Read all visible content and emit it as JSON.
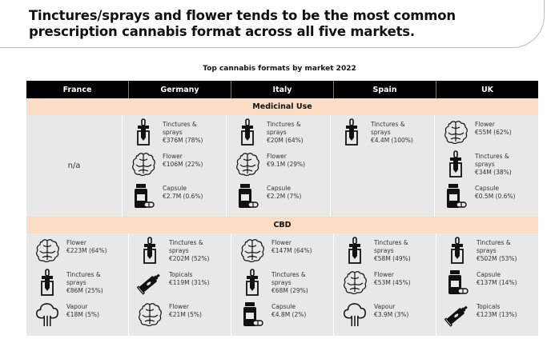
{
  "title": "Tinctures/sprays and flower tends to be the most common prescription cannabis format across all five markets.",
  "subtitle": "Top cannabis formats by market 2022",
  "columns": [
    "France",
    "Germany",
    "Italy",
    "Spain",
    "UK"
  ],
  "sections": [
    {
      "label": "Medicinal Use",
      "cells": [
        {
          "na": "n/a",
          "items": []
        },
        {
          "items": [
            {
              "icon": "dropper-bottle-icon",
              "name": "Tinctures & sprays",
              "value": "€376M (78%)"
            },
            {
              "icon": "flower-bud-icon",
              "name": "Flower",
              "value": "€106M (22%)"
            },
            {
              "icon": "capsule-bottle-icon",
              "name": "Capsule",
              "value": "€2.7M (0.6%)"
            }
          ]
        },
        {
          "items": [
            {
              "icon": "dropper-bottle-icon",
              "name": "Tinctures & sprays",
              "value": "€20M (64%)"
            },
            {
              "icon": "flower-bud-icon",
              "name": "Flower",
              "value": "€9.1M (29%)"
            },
            {
              "icon": "capsule-bottle-icon",
              "name": "Capsule",
              "value": "€2.2M (7%)"
            }
          ]
        },
        {
          "items": [
            {
              "icon": "dropper-bottle-icon",
              "name": "Tinctures & sprays",
              "value": "€4.4M (100%)"
            }
          ]
        },
        {
          "items": [
            {
              "icon": "flower-bud-icon",
              "name": "Flower",
              "value": "€55M (62%)"
            },
            {
              "icon": "dropper-bottle-icon",
              "name": "Tinctures & sprays",
              "value": "€34M (38%)"
            },
            {
              "icon": "capsule-bottle-icon",
              "name": "Capsule",
              "value": "€0.5M (0.6%)"
            }
          ]
        }
      ]
    },
    {
      "label": "CBD",
      "cells": [
        {
          "items": [
            {
              "icon": "flower-bud-icon",
              "name": "Flower",
              "value": "€223M (64%)"
            },
            {
              "icon": "dropper-bottle-icon",
              "name": "Tinctures & sprays",
              "value": "€86M (25%)"
            },
            {
              "icon": "vapour-cloud-icon",
              "name": "Vapour",
              "value": "€18M (5%)"
            }
          ]
        },
        {
          "items": [
            {
              "icon": "dropper-bottle-icon",
              "name": "Tinctures & sprays",
              "value": "€202M (52%)"
            },
            {
              "icon": "topical-tube-icon",
              "name": "Topicals",
              "value": "€119M (31%)"
            },
            {
              "icon": "flower-bud-icon",
              "name": "Flower",
              "value": "€21M (5%)"
            }
          ]
        },
        {
          "items": [
            {
              "icon": "flower-bud-icon",
              "name": "Flower",
              "value": "€147M (64%)"
            },
            {
              "icon": "dropper-bottle-icon",
              "name": "Tinctures & sprays",
              "value": "€68M (29%)"
            },
            {
              "icon": "capsule-bottle-icon",
              "name": "Capsule",
              "value": "€4.8M (2%)"
            }
          ]
        },
        {
          "items": [
            {
              "icon": "dropper-bottle-icon",
              "name": "Tinctures & sprays",
              "value": "€58M (49%)"
            },
            {
              "icon": "flower-bud-icon",
              "name": "Flower",
              "value": "€53M (45%)"
            },
            {
              "icon": "vapour-cloud-icon",
              "name": "Vapour",
              "value": "€3.9M (3%)"
            }
          ]
        },
        {
          "items": [
            {
              "icon": "dropper-bottle-icon",
              "name": "Tinctures & sprays",
              "value": "€502M (53%)"
            },
            {
              "icon": "capsule-bottle-icon",
              "name": "Capsule",
              "value": "€137M (14%)"
            },
            {
              "icon": "topical-tube-icon",
              "name": "Topicals",
              "value": "€123M (13%)"
            }
          ]
        }
      ]
    }
  ],
  "chart_data": {
    "type": "table",
    "title": "Top cannabis formats by market 2022",
    "columns": [
      "France",
      "Germany",
      "Italy",
      "Spain",
      "UK"
    ],
    "currency": "EUR",
    "rows": {
      "Medicinal Use": {
        "France": "n/a",
        "Germany": [
          [
            "Tinctures & sprays",
            376,
            78
          ],
          [
            "Flower",
            106,
            22
          ],
          [
            "Capsule",
            2.7,
            0.6
          ]
        ],
        "Italy": [
          [
            "Tinctures & sprays",
            20,
            64
          ],
          [
            "Flower",
            9.1,
            29
          ],
          [
            "Capsule",
            2.2,
            7
          ]
        ],
        "Spain": [
          [
            "Tinctures & sprays",
            4.4,
            100
          ]
        ],
        "UK": [
          [
            "Flower",
            55,
            62
          ],
          [
            "Tinctures & sprays",
            34,
            38
          ],
          [
            "Capsule",
            0.5,
            0.6
          ]
        ]
      },
      "CBD": {
        "France": [
          [
            "Flower",
            223,
            64
          ],
          [
            "Tinctures & sprays",
            86,
            25
          ],
          [
            "Vapour",
            18,
            5
          ]
        ],
        "Germany": [
          [
            "Tinctures & sprays",
            202,
            52
          ],
          [
            "Topicals",
            119,
            31
          ],
          [
            "Flower",
            21,
            5
          ]
        ],
        "Italy": [
          [
            "Flower",
            147,
            64
          ],
          [
            "Tinctures & sprays",
            68,
            29
          ],
          [
            "Capsule",
            4.8,
            2
          ]
        ],
        "Spain": [
          [
            "Tinctures & sprays",
            58,
            49
          ],
          [
            "Flower",
            53,
            45
          ],
          [
            "Vapour",
            3.9,
            3
          ]
        ],
        "UK": [
          [
            "Tinctures & sprays",
            502,
            53
          ],
          [
            "Capsule",
            137,
            14
          ],
          [
            "Topicals",
            123,
            13
          ]
        ]
      }
    },
    "value_units": "€M (share %)"
  }
}
